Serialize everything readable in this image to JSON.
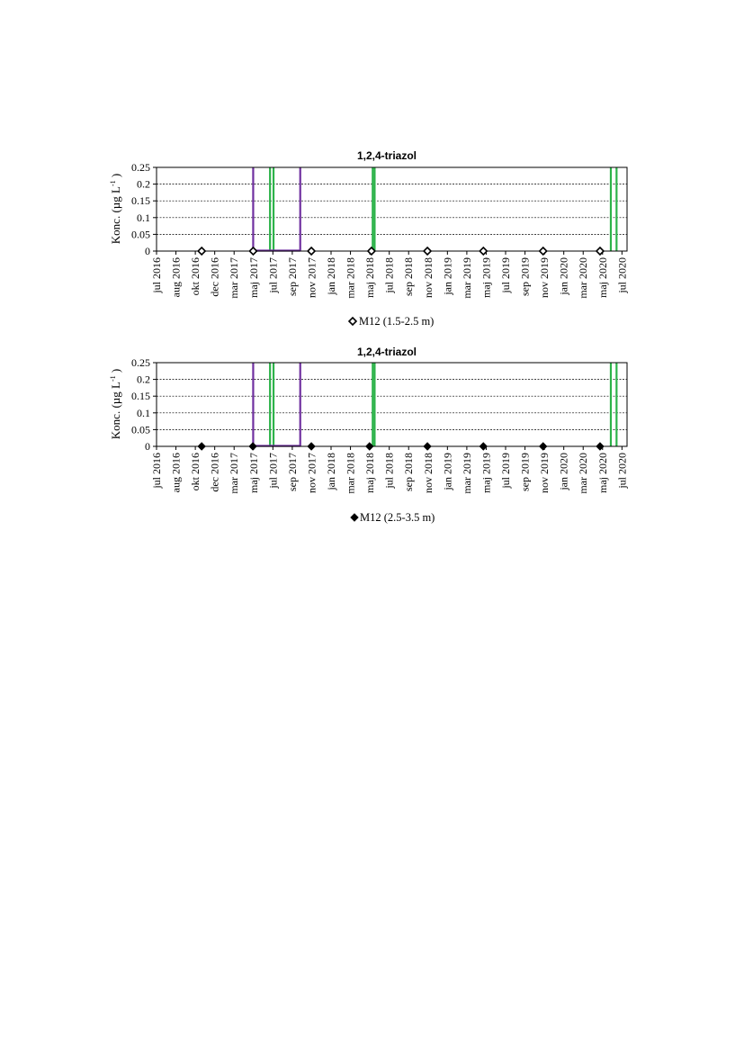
{
  "colors": {
    "green": "#2db34a",
    "purple": "#7030a0",
    "grid": "#000000"
  },
  "chart_data": [
    {
      "type": "scatter",
      "title": "1,2,4-triazol",
      "ylabel": "Konc. (µg L",
      "ylabel_sup": "-1",
      "ylabel_close": " )",
      "ylim": [
        0,
        0.25
      ],
      "yticks": [
        "0",
        "0.05",
        "0.1",
        "0.15",
        "0.2",
        "0.25"
      ],
      "xlim": [
        "2016-07-01",
        "2020-07-20"
      ],
      "xticks": [
        {
          "date": "2016-07-01",
          "label": "jul 2016"
        },
        {
          "date": "2016-08-31",
          "label": "aug 2016"
        },
        {
          "date": "2016-10-31",
          "label": "okt 2016"
        },
        {
          "date": "2016-12-31",
          "label": "dec 2016"
        },
        {
          "date": "2017-03-02",
          "label": "mar 2017"
        },
        {
          "date": "2017-05-02",
          "label": "maj 2017"
        },
        {
          "date": "2017-07-02",
          "label": "jul 2017"
        },
        {
          "date": "2017-09-01",
          "label": "sep 2017"
        },
        {
          "date": "2017-11-01",
          "label": "nov 2017"
        },
        {
          "date": "2018-01-01",
          "label": "jan 2018"
        },
        {
          "date": "2018-03-03",
          "label": "mar 2018"
        },
        {
          "date": "2018-05-03",
          "label": "maj 2018"
        },
        {
          "date": "2018-07-03",
          "label": "jul 2018"
        },
        {
          "date": "2018-09-02",
          "label": "sep 2018"
        },
        {
          "date": "2018-11-02",
          "label": "nov 2018"
        },
        {
          "date": "2019-01-02",
          "label": "jan 2019"
        },
        {
          "date": "2019-03-04",
          "label": "mar 2019"
        },
        {
          "date": "2019-05-04",
          "label": "maj 2019"
        },
        {
          "date": "2019-07-04",
          "label": "jul 2019"
        },
        {
          "date": "2019-09-03",
          "label": "sep 2019"
        },
        {
          "date": "2019-11-03",
          "label": "nov 2019"
        },
        {
          "date": "2020-01-03",
          "label": "jan 2020"
        },
        {
          "date": "2020-03-04",
          "label": "mar 2020"
        },
        {
          "date": "2020-05-04",
          "label": "maj 2020"
        },
        {
          "date": "2020-07-04",
          "label": "jul 2020"
        }
      ],
      "grid": true,
      "series": [
        {
          "name": "M12 (1.5-2.5 m)",
          "marker": "diamond-open",
          "points": [
            {
              "x": "2016-11-20",
              "y": 0
            },
            {
              "x": "2017-05-01",
              "y": 0
            },
            {
              "x": "2017-10-31",
              "y": 0
            },
            {
              "x": "2018-05-08",
              "y": 0
            },
            {
              "x": "2018-10-31",
              "y": 0
            },
            {
              "x": "2019-04-25",
              "y": 0
            },
            {
              "x": "2019-10-30",
              "y": 0
            },
            {
              "x": "2020-04-26",
              "y": 0
            }
          ]
        }
      ],
      "events": [
        {
          "type": "line",
          "x": "2017-05-01",
          "color": "purple"
        },
        {
          "type": "line",
          "x": "2017-06-23",
          "color": "green"
        },
        {
          "type": "line",
          "x": "2017-07-04",
          "color": "green"
        },
        {
          "type": "line",
          "x": "2017-09-26",
          "color": "purple"
        },
        {
          "type": "line",
          "x": "2018-05-12",
          "color": "green"
        },
        {
          "type": "line",
          "x": "2018-05-18",
          "color": "green"
        },
        {
          "type": "line",
          "x": "2020-05-30",
          "color": "green"
        },
        {
          "type": "line",
          "x": "2020-06-17",
          "color": "green"
        }
      ],
      "baseline_segments": [
        {
          "from": "2017-05-01",
          "to": "2017-09-26",
          "color": "purple"
        }
      ],
      "legend": "bottom-center"
    },
    {
      "type": "scatter",
      "title": "1,2,4-triazol",
      "ylabel": "Konc. (µg L",
      "ylabel_sup": "-1",
      "ylabel_close": " )",
      "ylim": [
        0,
        0.25
      ],
      "yticks": [
        "0",
        "0.05",
        "0.1",
        "0.15",
        "0.2",
        "0.25"
      ],
      "xlim": [
        "2016-07-01",
        "2020-07-20"
      ],
      "xticks": [
        {
          "date": "2016-07-01",
          "label": "jul 2016"
        },
        {
          "date": "2016-08-31",
          "label": "aug 2016"
        },
        {
          "date": "2016-10-31",
          "label": "okt 2016"
        },
        {
          "date": "2016-12-31",
          "label": "dec 2016"
        },
        {
          "date": "2017-03-02",
          "label": "mar 2017"
        },
        {
          "date": "2017-05-02",
          "label": "maj 2017"
        },
        {
          "date": "2017-07-02",
          "label": "jul 2017"
        },
        {
          "date": "2017-09-01",
          "label": "sep 2017"
        },
        {
          "date": "2017-11-01",
          "label": "nov 2017"
        },
        {
          "date": "2018-01-01",
          "label": "jan 2018"
        },
        {
          "date": "2018-03-03",
          "label": "mar 2018"
        },
        {
          "date": "2018-05-03",
          "label": "maj 2018"
        },
        {
          "date": "2018-07-03",
          "label": "jul 2018"
        },
        {
          "date": "2018-09-02",
          "label": "sep 2018"
        },
        {
          "date": "2018-11-02",
          "label": "nov 2018"
        },
        {
          "date": "2019-01-02",
          "label": "jan 2019"
        },
        {
          "date": "2019-03-04",
          "label": "mar 2019"
        },
        {
          "date": "2019-05-04",
          "label": "maj 2019"
        },
        {
          "date": "2019-07-04",
          "label": "jul 2019"
        },
        {
          "date": "2019-09-03",
          "label": "sep 2019"
        },
        {
          "date": "2019-11-03",
          "label": "nov 2019"
        },
        {
          "date": "2020-01-03",
          "label": "jan 2020"
        },
        {
          "date": "2020-03-04",
          "label": "mar 2020"
        },
        {
          "date": "2020-05-04",
          "label": "maj 2020"
        },
        {
          "date": "2020-07-04",
          "label": "jul 2020"
        }
      ],
      "grid": true,
      "series": [
        {
          "name": "M12 (2.5-3.5 m)",
          "marker": "diamond-filled",
          "points": [
            {
              "x": "2016-11-20",
              "y": 0
            },
            {
              "x": "2017-04-30",
              "y": 0
            },
            {
              "x": "2017-10-31",
              "y": 0
            },
            {
              "x": "2018-05-02",
              "y": 0
            },
            {
              "x": "2018-10-31",
              "y": 0
            },
            {
              "x": "2019-04-25",
              "y": 0
            },
            {
              "x": "2019-10-30",
              "y": 0
            },
            {
              "x": "2020-04-26",
              "y": 0
            }
          ]
        }
      ],
      "events": [
        {
          "type": "line",
          "x": "2017-05-01",
          "color": "purple"
        },
        {
          "type": "line",
          "x": "2017-06-23",
          "color": "green"
        },
        {
          "type": "line",
          "x": "2017-07-04",
          "color": "green"
        },
        {
          "type": "line",
          "x": "2017-09-26",
          "color": "purple"
        },
        {
          "type": "line",
          "x": "2018-05-12",
          "color": "green"
        },
        {
          "type": "line",
          "x": "2018-05-18",
          "color": "green"
        },
        {
          "type": "line",
          "x": "2020-05-30",
          "color": "green"
        },
        {
          "type": "line",
          "x": "2020-06-17",
          "color": "green"
        }
      ],
      "baseline_segments": [
        {
          "from": "2017-05-01",
          "to": "2017-09-26",
          "color": "purple"
        }
      ],
      "legend": "bottom-center"
    }
  ]
}
